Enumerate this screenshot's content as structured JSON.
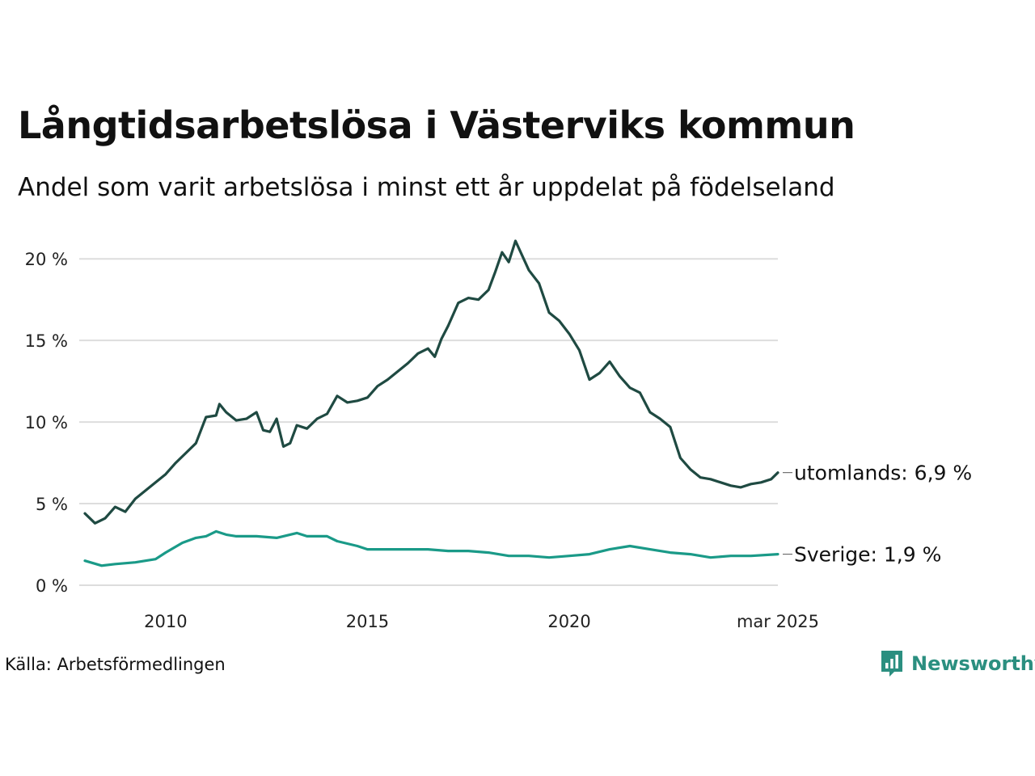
{
  "title": "Långtidsarbetslösa i Västerviks kommun",
  "subtitle": "Andel som varit arbetslösa i minst ett år uppdelat på födelseland",
  "source": "Källa: Arbetsförmedlingen",
  "brand": "Newsworthy",
  "colors": {
    "utomlands": "#1f4a42",
    "sverige": "#1a9a88",
    "grid": "#dddddd",
    "brand": "#2b8f80"
  },
  "chart_data": {
    "type": "line",
    "ylim": [
      0,
      21
    ],
    "y_ticks": [
      0,
      5,
      10,
      15,
      20
    ],
    "y_tick_labels": [
      "0 %",
      "5 %",
      "10 %",
      "15 %",
      "20 %"
    ],
    "x_range": [
      "2008-01",
      "2025-03"
    ],
    "x_ticks": [
      "2010-01",
      "2015-01",
      "2020-01",
      "2025-03"
    ],
    "x_tick_labels": [
      "2010",
      "2015",
      "2020",
      "mar 2025"
    ],
    "grid": "horizontal",
    "series": [
      {
        "key": "utomlands",
        "end_label": "utomlands: 6,9 %",
        "color": "#1f4a42",
        "points": [
          [
            "2008-01",
            4.4
          ],
          [
            "2008-04",
            3.8
          ],
          [
            "2008-07",
            4.1
          ],
          [
            "2008-10",
            4.8
          ],
          [
            "2009-01",
            4.5
          ],
          [
            "2009-04",
            5.3
          ],
          [
            "2009-07",
            5.8
          ],
          [
            "2009-10",
            6.3
          ],
          [
            "2010-01",
            6.8
          ],
          [
            "2010-04",
            7.5
          ],
          [
            "2010-07",
            8.1
          ],
          [
            "2010-10",
            8.7
          ],
          [
            "2011-01",
            10.3
          ],
          [
            "2011-04",
            10.4
          ],
          [
            "2011-05",
            11.1
          ],
          [
            "2011-07",
            10.6
          ],
          [
            "2011-10",
            10.1
          ],
          [
            "2012-01",
            10.2
          ],
          [
            "2012-04",
            10.6
          ],
          [
            "2012-06",
            9.5
          ],
          [
            "2012-08",
            9.4
          ],
          [
            "2012-10",
            10.2
          ],
          [
            "2012-12",
            8.5
          ],
          [
            "2013-02",
            8.7
          ],
          [
            "2013-04",
            9.8
          ],
          [
            "2013-07",
            9.6
          ],
          [
            "2013-10",
            10.2
          ],
          [
            "2014-01",
            10.5
          ],
          [
            "2014-04",
            11.6
          ],
          [
            "2014-07",
            11.2
          ],
          [
            "2014-10",
            11.3
          ],
          [
            "2015-01",
            11.5
          ],
          [
            "2015-04",
            12.2
          ],
          [
            "2015-07",
            12.6
          ],
          [
            "2015-10",
            13.1
          ],
          [
            "2016-01",
            13.6
          ],
          [
            "2016-04",
            14.2
          ],
          [
            "2016-07",
            14.5
          ],
          [
            "2016-09",
            14.0
          ],
          [
            "2016-11",
            15.1
          ],
          [
            "2017-01",
            15.9
          ],
          [
            "2017-04",
            17.3
          ],
          [
            "2017-07",
            17.6
          ],
          [
            "2017-10",
            17.5
          ],
          [
            "2018-01",
            18.1
          ],
          [
            "2018-03",
            19.2
          ],
          [
            "2018-05",
            20.4
          ],
          [
            "2018-07",
            19.8
          ],
          [
            "2018-09",
            21.1
          ],
          [
            "2018-11",
            20.2
          ],
          [
            "2019-01",
            19.3
          ],
          [
            "2019-04",
            18.5
          ],
          [
            "2019-07",
            16.7
          ],
          [
            "2019-10",
            16.2
          ],
          [
            "2020-01",
            15.4
          ],
          [
            "2020-04",
            14.4
          ],
          [
            "2020-07",
            12.6
          ],
          [
            "2020-10",
            13.0
          ],
          [
            "2021-01",
            13.7
          ],
          [
            "2021-04",
            12.8
          ],
          [
            "2021-07",
            12.1
          ],
          [
            "2021-10",
            11.8
          ],
          [
            "2022-01",
            10.6
          ],
          [
            "2022-04",
            10.2
          ],
          [
            "2022-07",
            9.7
          ],
          [
            "2022-10",
            7.8
          ],
          [
            "2023-01",
            7.1
          ],
          [
            "2023-04",
            6.6
          ],
          [
            "2023-07",
            6.5
          ],
          [
            "2023-10",
            6.3
          ],
          [
            "2024-01",
            6.1
          ],
          [
            "2024-04",
            6.0
          ],
          [
            "2024-07",
            6.2
          ],
          [
            "2024-10",
            6.3
          ],
          [
            "2025-01",
            6.5
          ],
          [
            "2025-03",
            6.9
          ]
        ]
      },
      {
        "key": "sverige",
        "end_label": "Sverige: 1,9 %",
        "color": "#1a9a88",
        "points": [
          [
            "2008-01",
            1.5
          ],
          [
            "2008-06",
            1.2
          ],
          [
            "2008-10",
            1.3
          ],
          [
            "2009-04",
            1.4
          ],
          [
            "2009-10",
            1.6
          ],
          [
            "2010-01",
            2.0
          ],
          [
            "2010-06",
            2.6
          ],
          [
            "2010-10",
            2.9
          ],
          [
            "2011-01",
            3.0
          ],
          [
            "2011-04",
            3.3
          ],
          [
            "2011-07",
            3.1
          ],
          [
            "2011-10",
            3.0
          ],
          [
            "2012-04",
            3.0
          ],
          [
            "2012-10",
            2.9
          ],
          [
            "2013-04",
            3.2
          ],
          [
            "2013-07",
            3.0
          ],
          [
            "2013-10",
            3.0
          ],
          [
            "2014-01",
            3.0
          ],
          [
            "2014-04",
            2.7
          ],
          [
            "2014-10",
            2.4
          ],
          [
            "2015-01",
            2.2
          ],
          [
            "2015-07",
            2.2
          ],
          [
            "2016-01",
            2.2
          ],
          [
            "2016-07",
            2.2
          ],
          [
            "2017-01",
            2.1
          ],
          [
            "2017-07",
            2.1
          ],
          [
            "2018-01",
            2.0
          ],
          [
            "2018-07",
            1.8
          ],
          [
            "2019-01",
            1.8
          ],
          [
            "2019-07",
            1.7
          ],
          [
            "2020-01",
            1.8
          ],
          [
            "2020-07",
            1.9
          ],
          [
            "2021-01",
            2.2
          ],
          [
            "2021-07",
            2.4
          ],
          [
            "2022-01",
            2.2
          ],
          [
            "2022-07",
            2.0
          ],
          [
            "2023-01",
            1.9
          ],
          [
            "2023-07",
            1.7
          ],
          [
            "2024-01",
            1.8
          ],
          [
            "2024-07",
            1.8
          ],
          [
            "2025-03",
            1.9
          ]
        ]
      }
    ]
  }
}
